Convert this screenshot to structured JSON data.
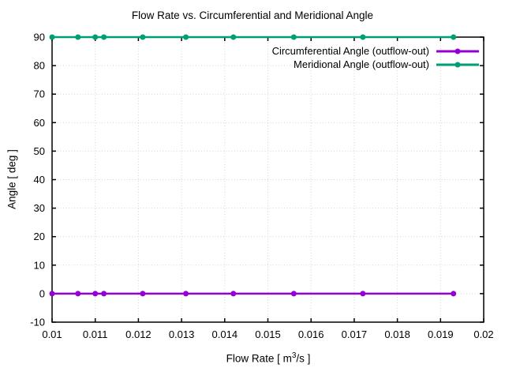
{
  "chart_data": {
    "type": "line",
    "title": "Flow Rate vs. Circumferential and Meridional Angle",
    "ylabel": "Angle [ deg ]",
    "xlabel_parts": {
      "prefix": "Flow Rate [ m",
      "sup": "3",
      "suffix": "/s ]"
    },
    "xlim": [
      0.01,
      0.02
    ],
    "ylim": [
      -10,
      90
    ],
    "xticks": [
      0.01,
      0.011,
      0.012,
      0.013,
      0.014,
      0.015,
      0.016,
      0.017,
      0.018,
      0.019,
      0.02
    ],
    "xtick_labels": [
      "0.01",
      "0.011",
      "0.012",
      "0.013",
      "0.014",
      "0.015",
      "0.016",
      "0.017",
      "0.018",
      "0.019",
      "0.02"
    ],
    "yticks": [
      -10,
      0,
      10,
      20,
      30,
      40,
      50,
      60,
      70,
      80,
      90
    ],
    "ytick_labels": [
      "-10",
      "0",
      "10",
      "20",
      "30",
      "40",
      "50",
      "60",
      "70",
      "80",
      "90"
    ],
    "grid": true,
    "grid_style": "dotted",
    "legend_position": "top-right-inside",
    "x": [
      0.01,
      0.0106,
      0.011,
      0.0112,
      0.0121,
      0.0131,
      0.0142,
      0.0156,
      0.0172,
      0.0193
    ],
    "series": [
      {
        "name": "Circumferential Angle (outflow-out)",
        "color": "#9400d3",
        "marker": "filled-circle",
        "values": [
          0,
          0,
          0,
          0,
          0,
          0,
          0,
          0,
          0,
          0
        ]
      },
      {
        "name": "Meridional Angle (outflow-out)",
        "color": "#009e73",
        "marker": "filled-circle",
        "values": [
          90,
          90,
          90,
          90,
          90,
          90,
          90,
          90,
          90,
          90
        ]
      }
    ],
    "colors": {
      "axis": "#000000",
      "grid": "#d4d4d4",
      "background": "#ffffff",
      "text": "#000000"
    }
  }
}
